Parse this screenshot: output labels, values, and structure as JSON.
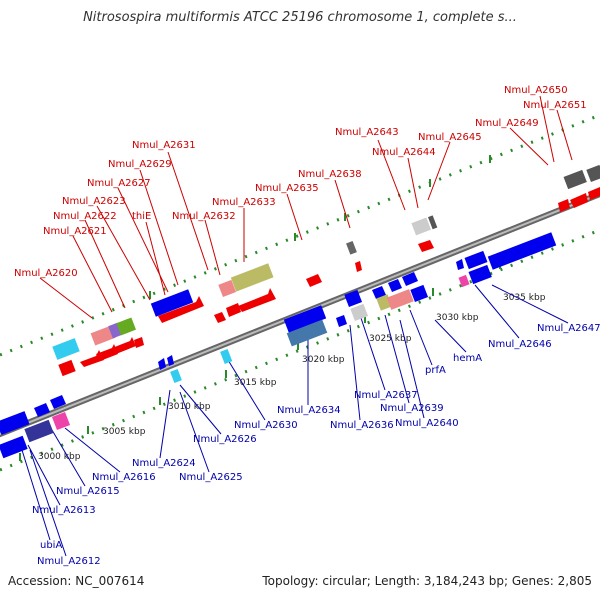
{
  "title": "Nitrosospira multiformis ATCC 25196 chromosome 1, complete s...",
  "accession": "Accession: NC_007614",
  "summary": "Topology: circular; Length: 3,184,243 bp; Genes: 2,805",
  "colors": {
    "top_strand_label": "#cc0000",
    "bottom_strand_label": "#0000aa",
    "backbone": "#888888",
    "tick": "#2a8a2a"
  },
  "scale_labels": [
    "3000 kbp",
    "3005 kbp",
    "3010 kbp",
    "3015 kbp",
    "3020 kbp",
    "3025 kbp",
    "3030 kbp",
    "3035 kbp"
  ],
  "top_labels": [
    "Nmul_A2650",
    "Nmul_A2651",
    "Nmul_A2649",
    "Nmul_A2643",
    "Nmul_A2645",
    "Nmul_A2644",
    "Nmul_A2631",
    "Nmul_A2638",
    "Nmul_A2629",
    "Nmul_A2635",
    "Nmul_A2627",
    "Nmul_A2623",
    "Nmul_A2633",
    "thiE",
    "Nmul_A2622",
    "Nmul_A2632",
    "Nmul_A2621",
    "Nmul_A2620"
  ],
  "bottom_labels": [
    "Nmul_A2647",
    "Nmul_A2646",
    "hemA",
    "prfA",
    "Nmul_A2637",
    "Nmul_A2639",
    "Nmul_A2640",
    "Nmul_A2636",
    "Nmul_A2634",
    "Nmul_A2630",
    "Nmul_A2626",
    "Nmul_A2624",
    "Nmul_A2625",
    "Nmul_A2616",
    "Nmul_A2615",
    "Nmul_A2613",
    "ubiA",
    "Nmul_A2612"
  ]
}
